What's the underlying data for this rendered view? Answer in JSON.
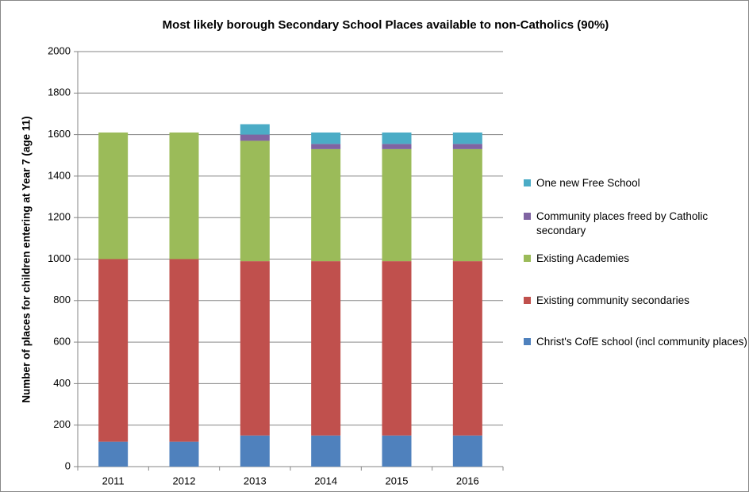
{
  "chart_data": {
    "type": "stacked_bar",
    "title": "Most likely borough Secondary School Places available to non-Catholics (90%)",
    "y_label": "Number of places for children entering at Year 7 (age 11)",
    "categories": [
      "2011",
      "2012",
      "2013",
      "2014",
      "2015",
      "2016"
    ],
    "series": [
      {
        "name": "Christ's CofE school (incl community places)",
        "color": "#4f81bd",
        "values": [
          120,
          120,
          150,
          150,
          150,
          150
        ]
      },
      {
        "name": "Existing community secondaries",
        "color": "#c0504d",
        "values": [
          880,
          880,
          840,
          840,
          840,
          840
        ]
      },
      {
        "name": "Existing Academies",
        "color": "#9bbb59",
        "values": [
          610,
          610,
          580,
          540,
          540,
          540
        ]
      },
      {
        "name": "Community places freed by Catholic secondary",
        "color": "#8064a2",
        "values": [
          0,
          0,
          30,
          25,
          25,
          25
        ]
      },
      {
        "name": "One new Free School",
        "color": "#4bacc6",
        "values": [
          0,
          0,
          50,
          55,
          55,
          55
        ]
      }
    ],
    "ylim": [
      0,
      2000
    ],
    "yticks": [
      0,
      200,
      400,
      600,
      800,
      1000,
      1200,
      1400,
      1600,
      1800,
      2000
    ],
    "grid": true,
    "legend": "right"
  }
}
